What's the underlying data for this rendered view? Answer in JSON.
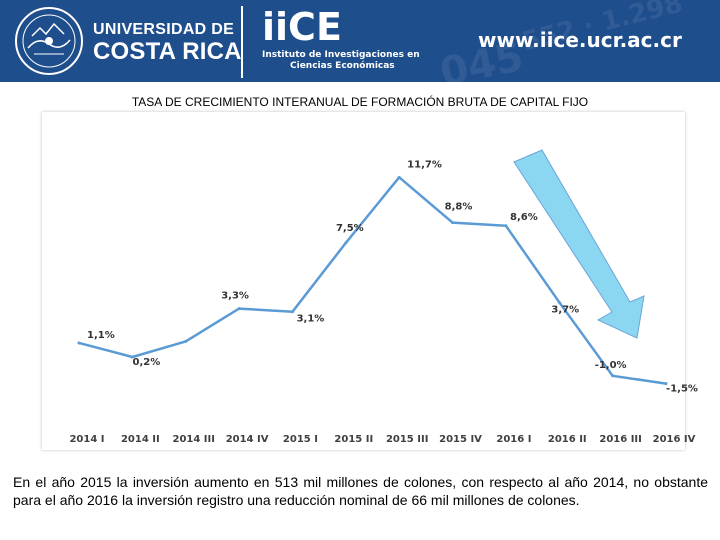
{
  "header": {
    "university_line1": "UNIVERSIDAD DE",
    "university_line2": "COSTA RICA",
    "institute_logo": "iiCE",
    "institute_line1": "Instituto de Investigaciones en",
    "institute_line2": "Ciencias Económicas",
    "url": "www.iice.ucr.ac.cr",
    "seal_icon": "university-seal-icon",
    "colors": {
      "banner": "#1f4e8c",
      "text": "#ffffff"
    }
  },
  "chart_data": {
    "type": "line",
    "title": "TASA DE CRECIMIENTO INTERANUAL DE FORMACIÓN BRUTA DE CAPITAL FIJO",
    "categories": [
      "2014 I",
      "2014 II",
      "2014 III",
      "2014 IV",
      "2015 I",
      "2015 II",
      "2015 III",
      "2015 IV",
      "2016 I",
      "2016 II",
      "2016 III",
      "2016 IV"
    ],
    "series": [
      {
        "values": [
          1.1,
          0.2,
          1.2,
          3.3,
          3.1,
          7.5,
          11.7,
          8.8,
          8.6,
          3.7,
          -1.0,
          -1.5
        ],
        "data_labels": [
          "1,1%",
          "0,2%",
          "",
          "3,3%",
          "3,1%",
          "7,5%",
          "11,7%",
          "8,8%",
          "8,6%",
          "3,7%",
          "-1,0%",
          "-1,5%"
        ],
        "color": "#5b9bd5"
      }
    ],
    "ylim": [
      -3,
      13
    ],
    "grid": false,
    "legend": "none",
    "annotation": {
      "type": "arrow",
      "direction": "down-right",
      "icon": "downward-trend-arrow-icon",
      "color": "#7fd3f0"
    }
  },
  "caption": "En el año 2015 la inversión aumento en 513 mil millones de colones, con respecto al año 2014, no obstante para el año 2016 la inversión registro una reducción nominal de 66 mil millones de colones."
}
